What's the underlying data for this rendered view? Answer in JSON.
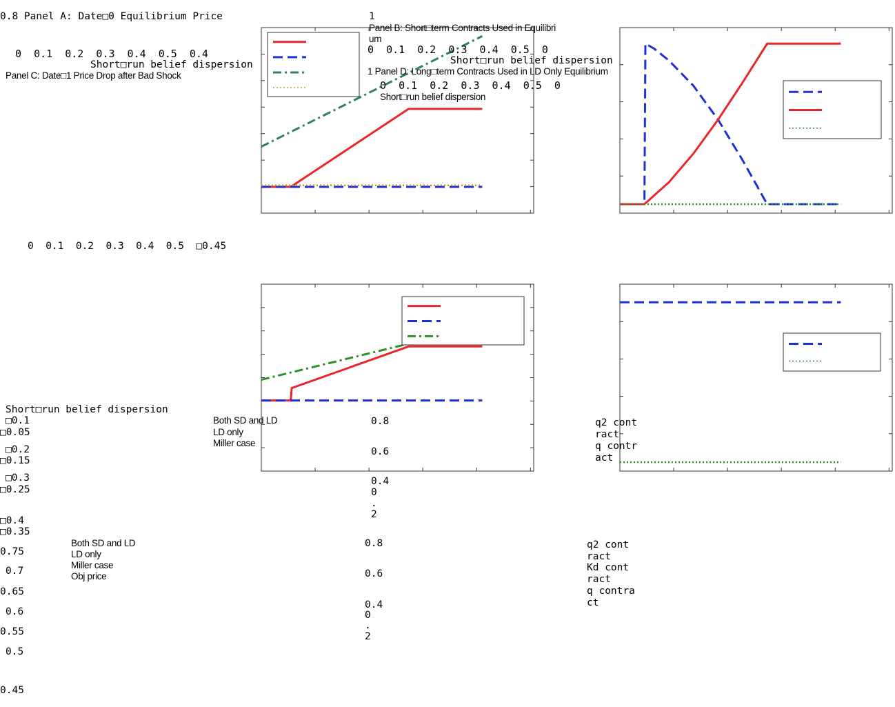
{
  "colors": {
    "red": "#e8262c",
    "blue": "#1f2fd6",
    "teal": "#2f7f66",
    "green": "#2b8f2b",
    "gold": "#b8963a",
    "frame": "#333333"
  },
  "text": {
    "panel_a_title": "0.8 Panel A: Date□0 Equilibrium Price",
    "panel_a_ticks": "0  0.1  0.2  0.3  0.4  0.5  0.4",
    "panel_a_xlabel": "Short□run belief dispersion",
    "panel_c_title": "Panel C: Date□1 Price Drop after Bad Shock",
    "panel_b_one": "1",
    "panel_b_title_1": "Panel B: Short□term Contracts Used in Equilibri",
    "panel_b_title_2": "um",
    "panel_b_ticks": "0  0.1  0.2  0.3  0.4  0.5  0",
    "panel_b_xlabel": "Short□run belief dispersion",
    "panel_d_title": "1 Panel D: Long□term Contracts Used in LD Only Equilibrium",
    "panel_d_ticks": "0  0.1  0.2  0.3  0.4  0.5  0",
    "panel_d_xlabel": "Short□run belief dispersion",
    "mid_ticks": "0  0.1  0.2  0.3  0.4  0.5  □0.45",
    "c_xlabel": "Short□run belief dispersion",
    "c_yticks": [
      "□0.1",
      "□0.05",
      "□0.2",
      "□0.15",
      "□0.3",
      "□0.25",
      "□0.4",
      "□0.35"
    ],
    "a_yticks": [
      "0.75",
      "0.7",
      "0.65",
      "0.6",
      "0.55",
      "0.5",
      "0.45"
    ],
    "a_legend_1": "Both SD and LD",
    "a_legend_2": "LD only",
    "a_legend_3": "Miller case",
    "a_legend_4": "Obj price",
    "c_legend_1": "Both SD and LD",
    "c_legend_2": "LD only",
    "c_legend_3": "Miller case",
    "b_yticks_top": [
      "0.8",
      "0.6",
      "0.4",
      "0",
      ".",
      "2"
    ],
    "b_yticks_bot": [
      "0.8",
      "0.6",
      "0.4",
      "0",
      ".",
      "2"
    ],
    "d_legend_1": "q2 cont",
    "d_legend_2": "ract",
    "d_legend_3": "q contr",
    "d_legend_4": "act",
    "b_legend_1": "q2 cont",
    "b_legend_2": "ract",
    "b_legend_3": "Kd cont",
    "b_legend_4": "ract",
    "b_legend_5": "q contra",
    "b_legend_6": "ct"
  },
  "chart_data": [
    {
      "id": "panel-a",
      "type": "line",
      "title": "Panel A: Date□0 Equilibrium Price",
      "xlabel": "Short□run belief dispersion",
      "xlim": [
        0,
        0.5
      ],
      "ylim": [
        0.45,
        0.8
      ],
      "series": [
        {
          "name": "Both SD and LD",
          "color": "#e8262c",
          "dash": "solid",
          "x": [
            0,
            0.06,
            0.3,
            0.45
          ],
          "y": [
            0.49,
            0.49,
            0.645,
            0.645
          ]
        },
        {
          "name": "LD only",
          "color": "#1f2fd6",
          "dash": "dashed",
          "x": [
            0,
            0.45
          ],
          "y": [
            0.49,
            0.49
          ]
        },
        {
          "name": "Miller case",
          "color": "#2f7f66",
          "dash": "dashdot",
          "x": [
            0,
            0.45
          ],
          "y": [
            0.57,
            0.79
          ]
        },
        {
          "name": "Obj price",
          "color": "#b8963a",
          "dash": "dotted",
          "x": [
            0,
            0.45
          ],
          "y": [
            0.493,
            0.493
          ]
        }
      ]
    },
    {
      "id": "panel-b",
      "type": "line",
      "title": "Panel B: Short□term Contracts Used in Equilibrium",
      "xlabel": "Short□run belief dispersion",
      "xlim": [
        0,
        0.5
      ],
      "ylim": [
        0,
        1
      ],
      "series": [
        {
          "name": "q2 contract",
          "color": "#1f2fd6",
          "dash": "dashed",
          "x": [
            0,
            0.05,
            0.052,
            0.07,
            0.1,
            0.15,
            0.2,
            0.25,
            0.3,
            0.45
          ],
          "y": [
            0,
            0,
            0.95,
            0.92,
            0.85,
            0.7,
            0.5,
            0.26,
            0,
            0
          ]
        },
        {
          "name": "Kd contract",
          "color": "#e8262c",
          "dash": "solid",
          "x": [
            0,
            0.05,
            0.1,
            0.15,
            0.2,
            0.25,
            0.3,
            0.45
          ],
          "y": [
            0,
            0,
            0.13,
            0.3,
            0.5,
            0.72,
            0.95,
            0.95
          ]
        },
        {
          "name": "q contract",
          "color": "#2b8f2b",
          "dash": "dotted",
          "x": [
            0,
            0.45
          ],
          "y": [
            0,
            0
          ]
        }
      ]
    },
    {
      "id": "panel-c",
      "type": "line",
      "title": "Panel C: Date□1 Price Drop after Bad Shock",
      "xlabel": "Short□run belief dispersion",
      "xlim": [
        0,
        0.5
      ],
      "ylim": [
        -0.45,
        0
      ],
      "series": [
        {
          "name": "Both SD and LD",
          "color": "#e8262c",
          "dash": "solid",
          "x": [
            0,
            0.06,
            0.062,
            0.3,
            0.45
          ],
          "y": [
            -0.17,
            -0.17,
            -0.2,
            -0.3,
            -0.3
          ]
        },
        {
          "name": "LD only",
          "color": "#1f2fd6",
          "dash": "dashed",
          "x": [
            0,
            0.45
          ],
          "y": [
            -0.17,
            -0.17
          ]
        },
        {
          "name": "Miller case",
          "color": "#2b8f2b",
          "dash": "dashdot",
          "x": [
            0,
            0.45
          ],
          "y": [
            -0.22,
            -0.35
          ]
        }
      ]
    },
    {
      "id": "panel-d",
      "type": "line",
      "title": "Panel D: Long□term Contracts Used in LD Only Equilibrium",
      "xlabel": "Short□run belief dispersion",
      "xlim": [
        0,
        0.5
      ],
      "ylim": [
        0,
        1
      ],
      "series": [
        {
          "name": "q2 contract",
          "color": "#1f2fd6",
          "dash": "dashed",
          "x": [
            0,
            0.45
          ],
          "y": [
            0.95,
            0.95
          ]
        },
        {
          "name": "q contract",
          "color": "#2b8f2b",
          "dash": "dotted",
          "x": [
            0,
            0.45
          ],
          "y": [
            0,
            0
          ]
        }
      ]
    }
  ]
}
